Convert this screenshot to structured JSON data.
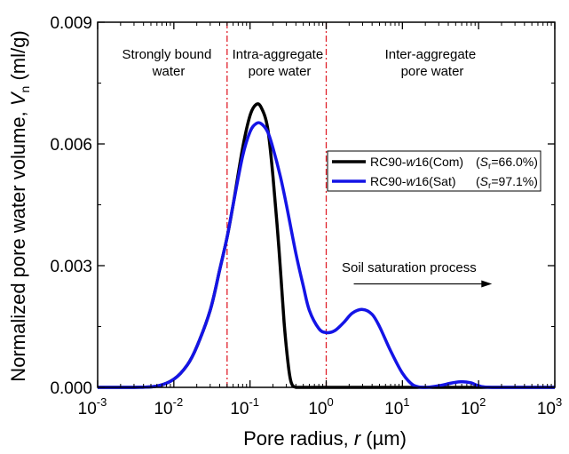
{
  "chart_data": {
    "type": "line",
    "x_scale": "log",
    "xlim": [
      0.001,
      1000
    ],
    "ylim": [
      0,
      0.009
    ],
    "xlabel": {
      "prefix": "Pore radius, ",
      "var": "r",
      "suffix": " (µm)"
    },
    "ylabel": {
      "prefix": "Normalized pore water volume, ",
      "var": "V",
      "sub": "n",
      "suffix": " (ml/g)"
    },
    "x_ticks": [
      {
        "value": 0.001,
        "base": "10",
        "exp": "-3"
      },
      {
        "value": 0.01,
        "base": "10",
        "exp": "-2"
      },
      {
        "value": 0.1,
        "base": "10",
        "exp": "-1"
      },
      {
        "value": 1,
        "base": "10",
        "exp": "0"
      },
      {
        "value": 10,
        "base": "10",
        "exp": "1"
      },
      {
        "value": 100,
        "base": "10",
        "exp": "2"
      },
      {
        "value": 1000,
        "base": "10",
        "exp": "3"
      }
    ],
    "y_ticks": [
      {
        "value": 0,
        "label": "0.000"
      },
      {
        "value": 0.003,
        "label": "0.003"
      },
      {
        "value": 0.006,
        "label": "0.006"
      },
      {
        "value": 0.009,
        "label": "0.009"
      }
    ],
    "grid": false,
    "vlines": [
      {
        "x": 0.05,
        "color": "#e0202a",
        "style": "dash-dot"
      },
      {
        "x": 1.0,
        "color": "#e0202a",
        "style": "dash-dot"
      }
    ],
    "regions": [
      {
        "lines": [
          "Strongly bound",
          "water"
        ]
      },
      {
        "lines": [
          "Intra-aggregate",
          "pore water"
        ]
      },
      {
        "lines": [
          "Inter-aggregate",
          "pore water"
        ]
      }
    ],
    "annotation": {
      "text": "Soil saturation process",
      "arrow_from_x": 2.3,
      "arrow_to_x": 150,
      "arrow_y": 0.00255
    },
    "legend_position": "right",
    "series": [
      {
        "name": "RC90-w16(Com)",
        "legend": {
          "prefix": "RC90-",
          "var": "w",
          "suffix": "16(Com)",
          "sr": "=66.0%)"
        },
        "color": "#000000",
        "x": [
          0.001,
          0.003,
          0.006,
          0.01,
          0.015,
          0.02,
          0.03,
          0.04,
          0.05,
          0.06,
          0.08,
          0.1,
          0.12,
          0.14,
          0.17,
          0.2,
          0.24,
          0.28,
          0.32,
          0.35,
          0.4,
          0.5,
          1,
          10,
          100,
          1000
        ],
        "y": [
          0,
          0,
          3e-05,
          0.0002,
          0.00055,
          0.001,
          0.0019,
          0.0029,
          0.0037,
          0.0045,
          0.0059,
          0.0067,
          0.00697,
          0.0069,
          0.0064,
          0.0052,
          0.0034,
          0.0016,
          0.0005,
          0.0001,
          0,
          0,
          0,
          0,
          0,
          0
        ]
      },
      {
        "name": "RC90-w16(Sat)",
        "legend": {
          "prefix": "RC90-",
          "var": "w",
          "suffix": "16(Sat)",
          "sr": "=97.1%)"
        },
        "color": "#1414e6",
        "x": [
          0.001,
          0.003,
          0.006,
          0.01,
          0.015,
          0.02,
          0.03,
          0.04,
          0.05,
          0.06,
          0.08,
          0.1,
          0.12,
          0.14,
          0.17,
          0.2,
          0.25,
          0.3,
          0.4,
          0.5,
          0.6,
          0.8,
          1.0,
          1.3,
          1.7,
          2.2,
          3.0,
          4.0,
          5.0,
          7.0,
          10,
          14,
          20,
          30,
          45,
          60,
          80,
          100,
          150,
          1000
        ],
        "y": [
          0,
          0,
          3e-05,
          0.0002,
          0.00055,
          0.001,
          0.0019,
          0.0029,
          0.0037,
          0.0045,
          0.0057,
          0.0063,
          0.0065,
          0.0065,
          0.0063,
          0.0059,
          0.0052,
          0.0045,
          0.0033,
          0.0025,
          0.0019,
          0.00145,
          0.00135,
          0.0014,
          0.0016,
          0.00183,
          0.00192,
          0.0018,
          0.0015,
          0.0009,
          0.00035,
          5e-05,
          0,
          4e-05,
          0.00011,
          0.00014,
          0.00011,
          4e-05,
          0,
          0
        ]
      }
    ]
  }
}
